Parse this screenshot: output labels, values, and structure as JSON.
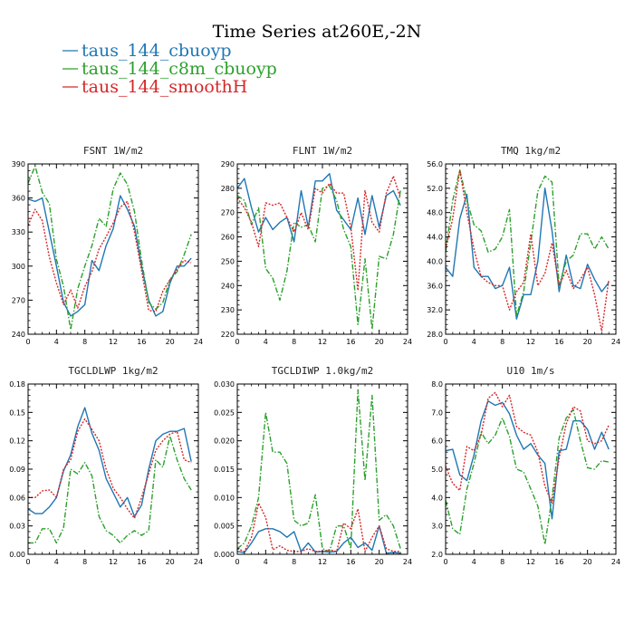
{
  "figure_title": "Time Series at260E,-2N",
  "legend": [
    {
      "label": "taus_144_cbuoyp",
      "color": "#1f77b4"
    },
    {
      "label": "taus_144_c8m_cbuoyp",
      "color": "#2ca02c"
    },
    {
      "label": "taus_144_smoothH",
      "color": "#d62728"
    }
  ],
  "chart_data": [
    {
      "type": "line",
      "title": "FSNT   1W/m2",
      "x": [
        0,
        1,
        2,
        3,
        4,
        5,
        6,
        7,
        8,
        9,
        10,
        11,
        12,
        13,
        14,
        15,
        16,
        17,
        18,
        19,
        20,
        21,
        22,
        23
      ],
      "xlim": [
        0,
        24
      ],
      "xticks": [
        "0",
        "4",
        "8",
        "12",
        "16",
        "20",
        "24"
      ],
      "ylim": [
        240,
        390
      ],
      "yticks": [
        "240",
        "270",
        "300",
        "330",
        "360",
        "390"
      ],
      "series": [
        {
          "name": "taus_144_cbuoyp",
          "color": "#1f77b4",
          "dash": "solid",
          "values": [
            359,
            357,
            360,
            330,
            300,
            268,
            256,
            260,
            266,
            305,
            296,
            318,
            333,
            362,
            350,
            335,
            300,
            270,
            256,
            260,
            285,
            300,
            300,
            307
          ]
        },
        {
          "name": "taus_144_c8m_cbuoyp",
          "color": "#2ca02c",
          "dash": "dashdot",
          "values": [
            373,
            388,
            365,
            355,
            306,
            282,
            244,
            280,
            300,
            318,
            342,
            335,
            368,
            382,
            372,
            348,
            305,
            268,
            262,
            268,
            288,
            295,
            310,
            328
          ]
        },
        {
          "name": "taus_144_smoothH",
          "color": "#d62728",
          "dash": "dotted",
          "values": [
            336,
            350,
            340,
            308,
            285,
            266,
            279,
            263,
            282,
            295,
            315,
            326,
            338,
            352,
            357,
            330,
            296,
            261,
            260,
            278,
            288,
            297,
            305,
            303
          ]
        }
      ]
    },
    {
      "type": "line",
      "title": "FLNT   1W/m2",
      "x": [
        0,
        1,
        2,
        3,
        4,
        5,
        6,
        7,
        8,
        9,
        10,
        11,
        12,
        13,
        14,
        15,
        16,
        17,
        18,
        19,
        20,
        21,
        22,
        23
      ],
      "xlim": [
        0,
        24
      ],
      "xticks": [
        "0",
        "4",
        "8",
        "12",
        "16",
        "20",
        "24"
      ],
      "ylim": [
        220,
        290
      ],
      "yticks": [
        "220",
        "230",
        "240",
        "250",
        "260",
        "270",
        "280",
        "290"
      ],
      "series": [
        {
          "name": "taus_144_cbuoyp",
          "color": "#1f77b4",
          "dash": "solid",
          "values": [
            280,
            284,
            272,
            262,
            268,
            263,
            266,
            268,
            258,
            279,
            264,
            283,
            283,
            286,
            271,
            267,
            263,
            276,
            261,
            277,
            264,
            277,
            279,
            273
          ]
        },
        {
          "name": "taus_144_c8m_cbuoyp",
          "color": "#2ca02c",
          "dash": "dashdot",
          "values": [
            277,
            275,
            265,
            272,
            247,
            243,
            234,
            246,
            266,
            264,
            265,
            258,
            280,
            281,
            275,
            263,
            256,
            224,
            251,
            222,
            252,
            251,
            261,
            279
          ]
        },
        {
          "name": "taus_144_smoothH",
          "color": "#d62728",
          "dash": "dotted",
          "values": [
            276,
            272,
            266,
            256,
            274,
            273,
            274,
            268,
            262,
            270,
            263,
            280,
            278,
            282,
            278,
            278,
            264,
            238,
            279,
            266,
            262,
            278,
            285,
            276
          ]
        }
      ]
    },
    {
      "type": "line",
      "title": "TMQ   1kg/m2",
      "x": [
        0,
        1,
        2,
        3,
        4,
        5,
        6,
        7,
        8,
        9,
        10,
        11,
        12,
        13,
        14,
        15,
        16,
        17,
        18,
        19,
        20,
        21,
        22,
        23
      ],
      "xlim": [
        0,
        24
      ],
      "xticks": [
        "0",
        "4",
        "8",
        "12",
        "16",
        "20",
        "24"
      ],
      "ylim": [
        28,
        56
      ],
      "yticks": [
        "28.0",
        "32.0",
        "36.0",
        "40.0",
        "44.0",
        "48.0",
        "52.0",
        "56.0"
      ],
      "series": [
        {
          "name": "taus_144_cbuoyp",
          "color": "#1f77b4",
          "dash": "solid",
          "values": [
            39,
            37.5,
            47,
            51,
            39,
            37.5,
            37.5,
            35.5,
            36,
            39,
            30.5,
            34.5,
            34.5,
            40,
            52,
            45,
            35,
            41,
            36,
            35.5,
            39.5,
            37,
            35,
            36.5
          ]
        },
        {
          "name": "taus_144_c8m_cbuoyp",
          "color": "#2ca02c",
          "dash": "dashdot",
          "values": [
            41.5,
            50,
            55,
            50,
            46,
            45,
            41.5,
            42,
            44,
            48.5,
            31,
            35,
            43,
            51.5,
            54,
            53,
            36,
            40,
            41,
            44.5,
            44.5,
            42,
            44,
            42
          ]
        },
        {
          "name": "taus_144_smoothH",
          "color": "#d62728",
          "dash": "dotted",
          "values": [
            42,
            47,
            55,
            48,
            42,
            37.5,
            36.5,
            36,
            36,
            32,
            35,
            36.5,
            44.5,
            36,
            38,
            43,
            36,
            38.5,
            35.5,
            37,
            39,
            34.5,
            28.5,
            37
          ]
        }
      ]
    },
    {
      "type": "line",
      "title": "TGCLDLWP   1kg/m2",
      "x": [
        0,
        1,
        2,
        3,
        4,
        5,
        6,
        7,
        8,
        9,
        10,
        11,
        12,
        13,
        14,
        15,
        16,
        17,
        18,
        19,
        20,
        21,
        22,
        23
      ],
      "xlim": [
        0,
        24
      ],
      "xticks": [
        "0",
        "4",
        "8",
        "12",
        "16",
        "20",
        "24"
      ],
      "ylim": [
        0,
        0.18
      ],
      "yticks": [
        "0.00",
        "0.03",
        "0.06",
        "0.09",
        "0.12",
        "0.15",
        "0.18"
      ],
      "series": [
        {
          "name": "taus_144_cbuoyp",
          "color": "#1f77b4",
          "dash": "solid",
          "values": [
            0.048,
            0.043,
            0.043,
            0.05,
            0.06,
            0.088,
            0.105,
            0.135,
            0.155,
            0.128,
            0.11,
            0.08,
            0.065,
            0.05,
            0.06,
            0.04,
            0.052,
            0.09,
            0.12,
            0.127,
            0.13,
            0.13,
            0.133,
            0.098
          ]
        },
        {
          "name": "taus_144_c8m_cbuoyp",
          "color": "#2ca02c",
          "dash": "dashdot",
          "values": [
            0.012,
            0.012,
            0.027,
            0.027,
            0.012,
            0.028,
            0.09,
            0.085,
            0.097,
            0.083,
            0.04,
            0.025,
            0.02,
            0.012,
            0.02,
            0.025,
            0.02,
            0.025,
            0.1,
            0.092,
            0.125,
            0.1,
            0.08,
            0.068
          ]
        },
        {
          "name": "taus_144_smoothH",
          "color": "#d62728",
          "dash": "dotted",
          "values": [
            0.06,
            0.06,
            0.067,
            0.068,
            0.06,
            0.09,
            0.1,
            0.13,
            0.143,
            0.132,
            0.12,
            0.09,
            0.07,
            0.06,
            0.048,
            0.038,
            0.06,
            0.085,
            0.11,
            0.12,
            0.127,
            0.13,
            0.1,
            0.097
          ]
        }
      ]
    },
    {
      "type": "line",
      "title": "TGCLDIWP   1.0kg/m2",
      "x": [
        0,
        1,
        2,
        3,
        4,
        5,
        6,
        7,
        8,
        9,
        10,
        11,
        12,
        13,
        14,
        15,
        16,
        17,
        18,
        19,
        20,
        21,
        22,
        23
      ],
      "xlim": [
        0,
        24
      ],
      "xticks": [
        "0",
        "4",
        "8",
        "12",
        "16",
        "20",
        "24"
      ],
      "ylim": [
        0,
        0.03
      ],
      "yticks": [
        "0.000",
        "0.005",
        "0.010",
        "0.015",
        "0.020",
        "0.025",
        "0.030"
      ],
      "series": [
        {
          "name": "taus_144_cbuoyp",
          "color": "#1f77b4",
          "dash": "solid",
          "values": [
            0.0005,
            0.0003,
            0.002,
            0.004,
            0.0045,
            0.0045,
            0.004,
            0.003,
            0.004,
            0.0005,
            0.002,
            0.0004,
            0.0005,
            0.0004,
            0.0005,
            0.002,
            0.003,
            0.0012,
            0.002,
            0.0007,
            0.005,
            0.0002,
            0.0003,
            0.0002
          ]
        },
        {
          "name": "taus_144_c8m_cbuoyp",
          "color": "#2ca02c",
          "dash": "dashdot",
          "values": [
            0.001,
            0.002,
            0.005,
            0.01,
            0.025,
            0.018,
            0.018,
            0.016,
            0.006,
            0.005,
            0.0055,
            0.0105,
            0.001,
            0.0005,
            0.005,
            0.005,
            0.001,
            0.029,
            0.013,
            0.028,
            0.006,
            0.007,
            0.005,
            0.001
          ]
        },
        {
          "name": "taus_144_smoothH",
          "color": "#d62728",
          "dash": "dotted",
          "values": [
            0.001,
            0.0005,
            0.003,
            0.009,
            0.0065,
            0.0008,
            0.0015,
            0.0007,
            0.0005,
            0.0005,
            0.001,
            0.0005,
            0.0005,
            0.0008,
            0.0005,
            0.0055,
            0.0045,
            0.008,
            0.0005,
            0.003,
            0.005,
            0.001,
            0.0005,
            0.0005
          ]
        }
      ]
    },
    {
      "type": "line",
      "title": "U10   1m/s",
      "x": [
        0,
        1,
        2,
        3,
        4,
        5,
        6,
        7,
        8,
        9,
        10,
        11,
        12,
        13,
        14,
        15,
        16,
        17,
        18,
        19,
        20,
        21,
        22,
        23
      ],
      "xlim": [
        0,
        24
      ],
      "xticks": [
        "0",
        "4",
        "8",
        "12",
        "16",
        "20",
        "24"
      ],
      "ylim": [
        2,
        8
      ],
      "yticks": [
        "2.0",
        "3.0",
        "4.0",
        "5.0",
        "6.0",
        "7.0",
        "8.0"
      ],
      "series": [
        {
          "name": "taus_144_cbuoyp",
          "color": "#1f77b4",
          "dash": "solid",
          "values": [
            5.65,
            5.7,
            4.8,
            4.6,
            5.5,
            6.7,
            7.4,
            7.25,
            7.35,
            6.95,
            6.2,
            5.7,
            5.9,
            5.5,
            5.2,
            3.25,
            5.65,
            5.7,
            6.7,
            6.7,
            6.4,
            5.7,
            6.3,
            5.7
          ]
        },
        {
          "name": "taus_144_c8m_cbuoyp",
          "color": "#2ca02c",
          "dash": "dashdot",
          "values": [
            3.9,
            2.9,
            2.7,
            4.3,
            5.2,
            6.3,
            5.9,
            6.2,
            6.8,
            6.15,
            5.0,
            4.9,
            4.3,
            3.7,
            2.35,
            4.0,
            6.1,
            6.8,
            7.1,
            6.0,
            5.05,
            5.0,
            5.3,
            5.25
          ]
        },
        {
          "name": "taus_144_smoothH",
          "color": "#d62728",
          "dash": "dotted",
          "values": [
            5.1,
            4.5,
            4.25,
            5.8,
            5.65,
            6.2,
            7.5,
            7.7,
            7.2,
            7.6,
            6.5,
            6.3,
            6.2,
            5.6,
            4.4,
            3.8,
            5.4,
            6.6,
            7.2,
            7.05,
            6.0,
            5.9,
            6.0,
            6.55
          ]
        }
      ]
    }
  ]
}
